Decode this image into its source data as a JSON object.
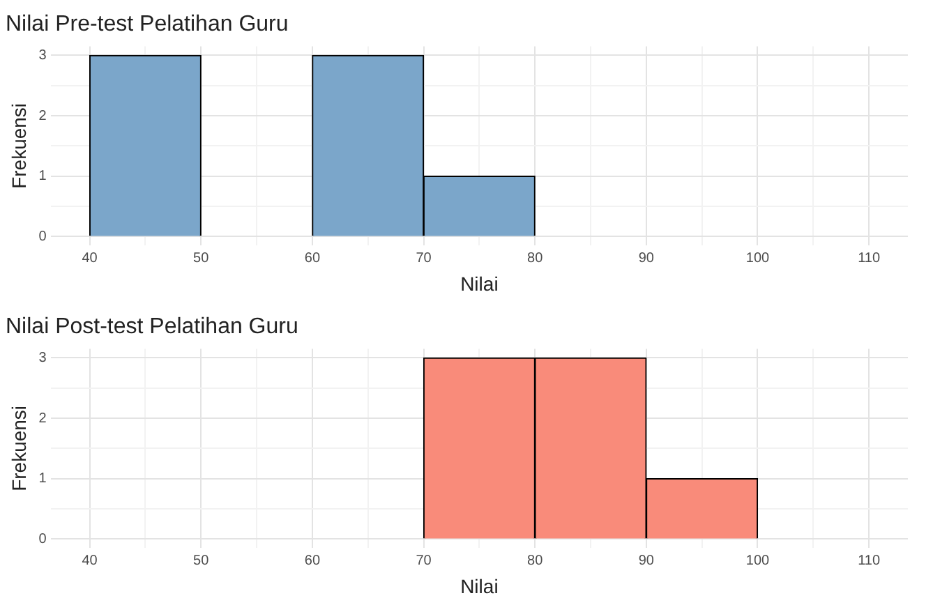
{
  "chart_data": [
    {
      "type": "histogram",
      "title": "Nilai Pre-test Pelatihan Guru",
      "xlabel": "Nilai",
      "ylabel": "Frekuensi",
      "bins": [
        40,
        50,
        60,
        70,
        80,
        90,
        100,
        110
      ],
      "values": [
        3,
        0,
        3,
        1,
        0,
        0,
        0
      ],
      "color": "#7ba6ca",
      "xlim": [
        36.5,
        113.5
      ],
      "ylim": [
        -0.15,
        3.15
      ],
      "xticks": [
        40,
        {
          "value": 45,
          "label": null
        },
        50,
        {
          "value": 55,
          "label": null
        },
        60,
        {
          "value": 65,
          "label": null
        },
        70,
        {
          "value": 75,
          "label": null
        },
        80,
        {
          "value": 85,
          "label": null
        },
        90,
        {
          "value": 95,
          "label": null
        },
        100,
        {
          "value": 105,
          "label": null
        },
        110
      ],
      "yticks": [
        0,
        {
          "value": 0.5,
          "label": null
        },
        1,
        {
          "value": 1.5,
          "label": null
        },
        2,
        {
          "value": 2.5,
          "label": null
        },
        3
      ],
      "grid": true,
      "legend": false
    },
    {
      "type": "histogram",
      "title": "Nilai Post-test Pelatihan Guru",
      "xlabel": "Nilai",
      "ylabel": "Frekuensi",
      "bins": [
        40,
        50,
        60,
        70,
        80,
        90,
        100,
        110
      ],
      "values": [
        0,
        0,
        0,
        3,
        3,
        1,
        0
      ],
      "color": "#f98b7a",
      "xlim": [
        36.5,
        113.5
      ],
      "ylim": [
        -0.15,
        3.15
      ],
      "xticks": [
        40,
        {
          "value": 45,
          "label": null
        },
        50,
        {
          "value": 55,
          "label": null
        },
        60,
        {
          "value": 65,
          "label": null
        },
        70,
        {
          "value": 75,
          "label": null
        },
        80,
        {
          "value": 85,
          "label": null
        },
        90,
        {
          "value": 95,
          "label": null
        },
        100,
        {
          "value": 105,
          "label": null
        },
        110
      ],
      "yticks": [
        0,
        {
          "value": 0.5,
          "label": null
        },
        1,
        {
          "value": 1.5,
          "label": null
        },
        2,
        {
          "value": 2.5,
          "label": null
        },
        3
      ],
      "grid": true,
      "legend": false
    }
  ]
}
